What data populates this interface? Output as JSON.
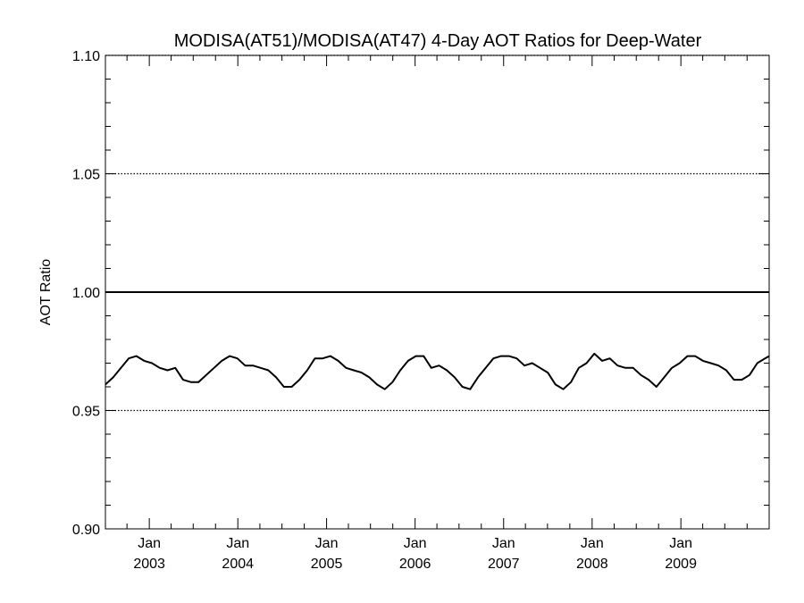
{
  "chart_data": {
    "type": "line",
    "title": "MODISA(AT51)/MODISA(AT47) 4-Day AOT Ratios for Deep-Water",
    "xlabel": "",
    "ylabel": "AOT Ratio",
    "xlim": [
      "2002-07-04",
      "2009-12-31"
    ],
    "ylim": [
      0.9,
      1.1
    ],
    "yticks": [
      "0.90",
      "0.95",
      "1.00",
      "1.05",
      "1.10"
    ],
    "xticks": [
      {
        "date": "2003-01-01",
        "month": "Jan",
        "year": "2003"
      },
      {
        "date": "2004-01-01",
        "month": "Jan",
        "year": "2004"
      },
      {
        "date": "2005-01-01",
        "month": "Jan",
        "year": "2005"
      },
      {
        "date": "2006-01-01",
        "month": "Jan",
        "year": "2006"
      },
      {
        "date": "2007-01-01",
        "month": "Jan",
        "year": "2007"
      },
      {
        "date": "2008-01-01",
        "month": "Jan",
        "year": "2008"
      },
      {
        "date": "2009-01-01",
        "month": "Jan",
        "year": "2009"
      }
    ],
    "grid": "dotted horizontal at major y ticks",
    "reference_line": 1.0,
    "series": [
      {
        "x": [
          "2002-07-04",
          "2002-08-05",
          "2002-09-06",
          "2002-10-08",
          "2002-11-09",
          "2002-12-11",
          "2003-01-12",
          "2003-02-13",
          "2003-03-17",
          "2003-04-18",
          "2003-05-20",
          "2003-06-21",
          "2003-07-23",
          "2003-08-24",
          "2003-09-25",
          "2003-10-27",
          "2003-11-28",
          "2003-12-30",
          "2004-01-31",
          "2004-03-03",
          "2004-04-04",
          "2004-05-06",
          "2004-06-07",
          "2004-07-09",
          "2004-08-10",
          "2004-09-11",
          "2004-10-13",
          "2004-11-14",
          "2004-12-16",
          "2005-01-17",
          "2005-02-18",
          "2005-03-22",
          "2005-04-23",
          "2005-05-25",
          "2005-06-26",
          "2005-07-28",
          "2005-08-29",
          "2005-09-30",
          "2005-11-01",
          "2005-12-03",
          "2006-01-04",
          "2006-02-05",
          "2006-03-09",
          "2006-04-10",
          "2006-05-12",
          "2006-06-13",
          "2006-07-15",
          "2006-08-16",
          "2006-09-17",
          "2006-10-19",
          "2006-11-20",
          "2006-12-22",
          "2007-01-23",
          "2007-02-24",
          "2007-03-28",
          "2007-04-29",
          "2007-05-31",
          "2007-07-02",
          "2007-08-03",
          "2007-09-04",
          "2007-10-06",
          "2007-11-07",
          "2007-12-09",
          "2008-01-10",
          "2008-02-11",
          "2008-03-14",
          "2008-04-15",
          "2008-05-17",
          "2008-06-18",
          "2008-07-20",
          "2008-08-21",
          "2008-09-22",
          "2008-10-24",
          "2008-11-25",
          "2008-12-27",
          "2009-01-28",
          "2009-03-01",
          "2009-04-02",
          "2009-05-04",
          "2009-06-05",
          "2009-07-07",
          "2009-08-08",
          "2009-09-09",
          "2009-10-11",
          "2009-11-12",
          "2009-12-14",
          "2009-12-31"
        ],
        "y": [
          0.961,
          0.964,
          0.968,
          0.972,
          0.973,
          0.971,
          0.97,
          0.968,
          0.967,
          0.968,
          0.963,
          0.962,
          0.962,
          0.965,
          0.968,
          0.971,
          0.973,
          0.972,
          0.969,
          0.969,
          0.968,
          0.967,
          0.964,
          0.96,
          0.96,
          0.963,
          0.967,
          0.972,
          0.972,
          0.973,
          0.971,
          0.968,
          0.967,
          0.966,
          0.964,
          0.961,
          0.959,
          0.962,
          0.967,
          0.971,
          0.973,
          0.973,
          0.968,
          0.969,
          0.967,
          0.964,
          0.96,
          0.959,
          0.964,
          0.968,
          0.972,
          0.973,
          0.973,
          0.972,
          0.969,
          0.97,
          0.968,
          0.966,
          0.961,
          0.959,
          0.962,
          0.968,
          0.97,
          0.974,
          0.971,
          0.972,
          0.969,
          0.968,
          0.968,
          0.965,
          0.963,
          0.96,
          0.964,
          0.968,
          0.97,
          0.973,
          0.973,
          0.971,
          0.97,
          0.969,
          0.967,
          0.963,
          0.963,
          0.965,
          0.97,
          0.972,
          0.973
        ]
      }
    ]
  }
}
